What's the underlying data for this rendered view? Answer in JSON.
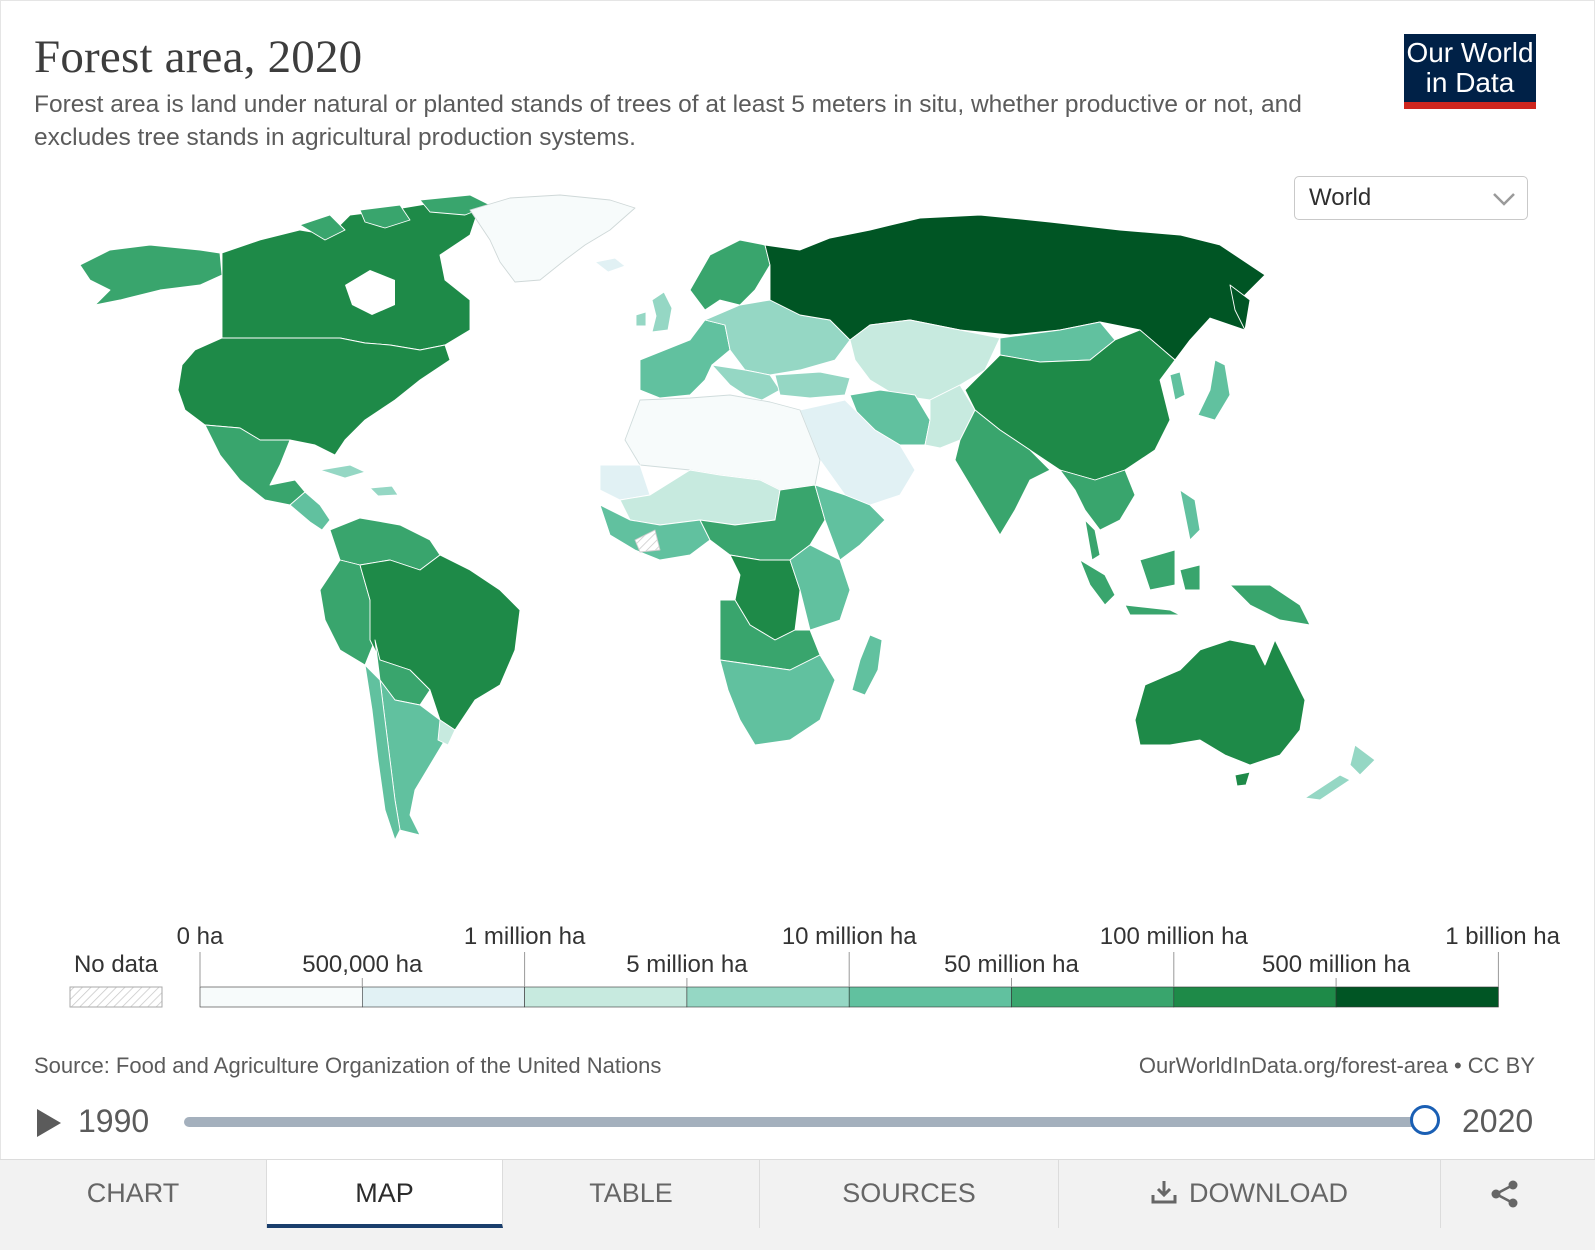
{
  "header": {
    "title": "Forest area, 2020",
    "subtitle": "Forest area is land under natural or planted stands of trees of at least 5 meters in situ, whether productive or not, and excludes tree stands in agricultural production systems."
  },
  "logo": {
    "line1": "Our World",
    "line2": "in Data"
  },
  "region_select": {
    "value": "World"
  },
  "legend": {
    "no_data_label": "No data",
    "bins": [
      {
        "label": "0 ha",
        "color": "#f7fbfb"
      },
      {
        "label": "500,000 ha",
        "color": "#e1f1f4"
      },
      {
        "label": "1 million ha",
        "color": "#c7eadf"
      },
      {
        "label": "5 million ha",
        "color": "#95d7c4"
      },
      {
        "label": "10 million ha",
        "color": "#61c19f"
      },
      {
        "label": "50 million ha",
        "color": "#39a56d"
      },
      {
        "label": "100 million ha",
        "color": "#1e8a48"
      },
      {
        "label": "500 million ha",
        "color": "#005524"
      },
      {
        "label": "1 billion ha",
        "color": ""
      }
    ]
  },
  "footer": {
    "source": "Source: Food and Agriculture Organization of the United Nations",
    "url": "OurWorldInData.org/forest-area • CC BY"
  },
  "timeline": {
    "start_year": "1990",
    "end_year": "2020",
    "position": 1.0
  },
  "tabs": [
    {
      "label": "CHART",
      "active": false
    },
    {
      "label": "MAP",
      "active": true
    },
    {
      "label": "TABLE",
      "active": false
    },
    {
      "label": "SOURCES",
      "active": false
    },
    {
      "label": "DOWNLOAD",
      "active": false,
      "icon": "download-icon"
    }
  ],
  "share_icon": "share-icon",
  "colors": {
    "accent": "#1a3e6c",
    "logo_bg": "#002147",
    "logo_stripe": "#ce261e"
  }
}
